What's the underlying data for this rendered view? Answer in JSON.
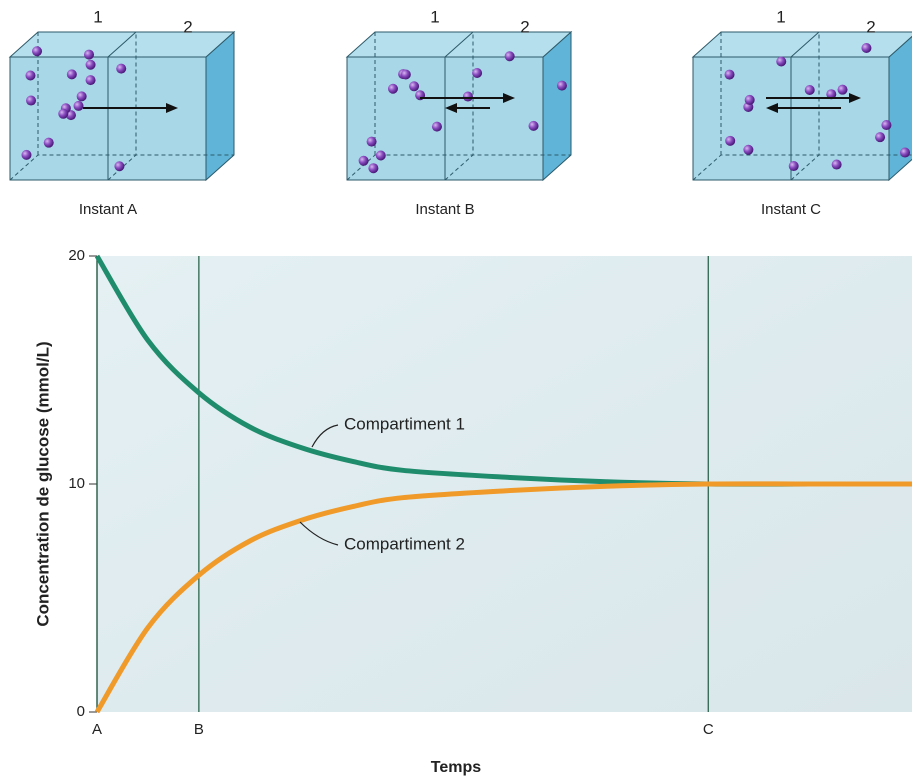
{
  "diagrams": [
    {
      "label": "Instant A",
      "compartments": [
        "1",
        "2"
      ]
    },
    {
      "label": "Instant B",
      "compartments": [
        "1",
        "2"
      ]
    },
    {
      "label": "Instant C",
      "compartments": [
        "1",
        "2"
      ]
    }
  ],
  "chart_data": {
    "type": "line",
    "x_label": "Temps",
    "y_label": "Concentration de glucose (mmol/L)",
    "x": [
      0,
      0.5,
      1,
      1.5,
      2,
      2.5,
      3,
      4,
      5,
      6,
      7,
      8
    ],
    "series": [
      {
        "name": "Compartiment 1",
        "color": "#1f8c6c",
        "values": [
          20,
          16.3,
          14,
          12.5,
          11.6,
          11,
          10.6,
          10.3,
          10.1,
          10,
          10,
          10
        ]
      },
      {
        "name": "Compartiment 2",
        "color": "#f09a2a",
        "values": [
          0,
          3.7,
          6,
          7.5,
          8.4,
          9,
          9.4,
          9.7,
          9.9,
          10,
          10,
          10
        ]
      }
    ],
    "xlim": [
      0,
      8
    ],
    "xticks": [
      {
        "value": 0,
        "label": "A"
      },
      {
        "value": 1,
        "label": "B"
      },
      {
        "value": 6,
        "label": "C"
      }
    ],
    "ylim": [
      0,
      20
    ],
    "yticks": [
      0,
      10,
      20
    ],
    "vertical_lines_at_xticks": true
  }
}
